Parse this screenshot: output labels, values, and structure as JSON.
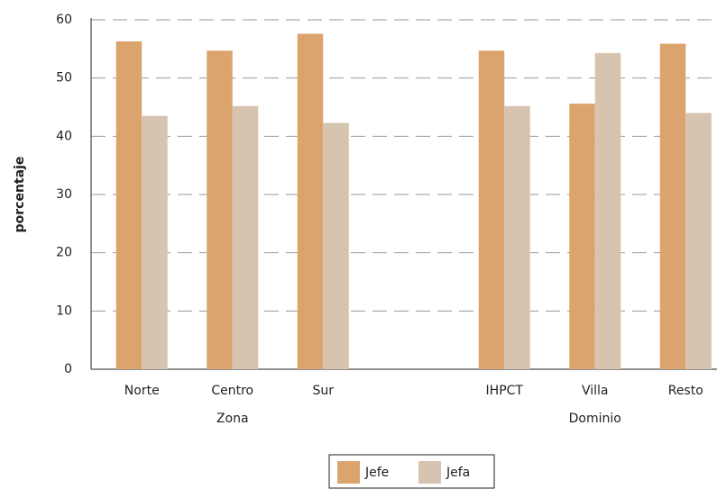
{
  "chart_data": {
    "type": "bar",
    "ylabel": "porcentaje",
    "categories": [
      "Norte",
      "Centro",
      "Sur",
      null,
      "IHPCT",
      "Villa",
      "Resto"
    ],
    "groups": [
      "Zona",
      "Dominio"
    ],
    "series": [
      {
        "name": "Jefe",
        "color": "#dba46e",
        "values": [
          56.3,
          54.7,
          57.6,
          null,
          54.7,
          45.6,
          55.9
        ]
      },
      {
        "name": "Jefa",
        "color": "#d6c4b0",
        "values": [
          43.5,
          45.2,
          42.3,
          null,
          45.2,
          54.3,
          44.0
        ]
      }
    ],
    "ylim": [
      0,
      60
    ],
    "yticks": [
      0,
      10,
      20,
      30,
      40,
      50,
      60
    ],
    "grid": true
  }
}
